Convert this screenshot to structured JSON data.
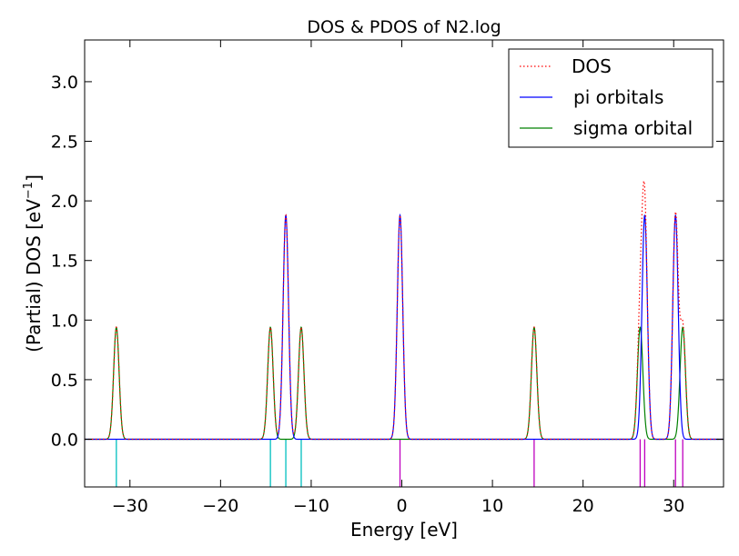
{
  "chart_data": {
    "type": "line",
    "title": "DOS & PDOS of N2.log",
    "xlabel": "Energy [eV]",
    "ylabel_main": "(Partial) DOS [eV",
    "ylabel_exp": "−1",
    "ylabel_close": "]",
    "xlim": [
      -35,
      35.5
    ],
    "ylim": [
      -0.4,
      3.35
    ],
    "xticks": [
      -30,
      -20,
      -10,
      0,
      10,
      20,
      30
    ],
    "xtick_labels": [
      "−30",
      "−20",
      "−10",
      "0",
      "10",
      "20",
      "30"
    ],
    "yticks": [
      0.0,
      0.5,
      1.0,
      1.5,
      2.0,
      2.5,
      3.0
    ],
    "ytick_labels": [
      "0.0",
      "0.5",
      "1.0",
      "1.5",
      "2.0",
      "2.5",
      "3.0"
    ],
    "gaussian_sigma": 0.3,
    "series": [
      {
        "name": "DOS",
        "color": "#ff0000",
        "style": "dotted"
      },
      {
        "name": "pi orbitals",
        "color": "#0000ff",
        "style": "solid",
        "peaks": [
          {
            "e": -12.8,
            "h": 1.88
          },
          {
            "e": -0.2,
            "h": 1.88
          },
          {
            "e": 26.8,
            "h": 1.88
          },
          {
            "e": 30.2,
            "h": 1.88
          }
        ]
      },
      {
        "name": "sigma orbital",
        "color": "#008000",
        "style": "solid",
        "peaks": [
          {
            "e": -31.5,
            "h": 0.94
          },
          {
            "e": -14.5,
            "h": 0.94
          },
          {
            "e": -11.1,
            "h": 0.94
          },
          {
            "e": 14.6,
            "h": 0.94
          },
          {
            "e": 26.3,
            "h": 0.94
          },
          {
            "e": 31.0,
            "h": 0.94
          }
        ]
      }
    ],
    "occupied_levels": {
      "color": "#00bfbf",
      "energies": [
        -31.5,
        -14.5,
        -12.8,
        -11.1
      ]
    },
    "virtual_levels": {
      "color": "#bf00bf",
      "energies": [
        -0.2,
        14.6,
        26.3,
        26.8,
        30.2,
        31.0
      ]
    },
    "legend_position": "top-right",
    "grid": false
  }
}
